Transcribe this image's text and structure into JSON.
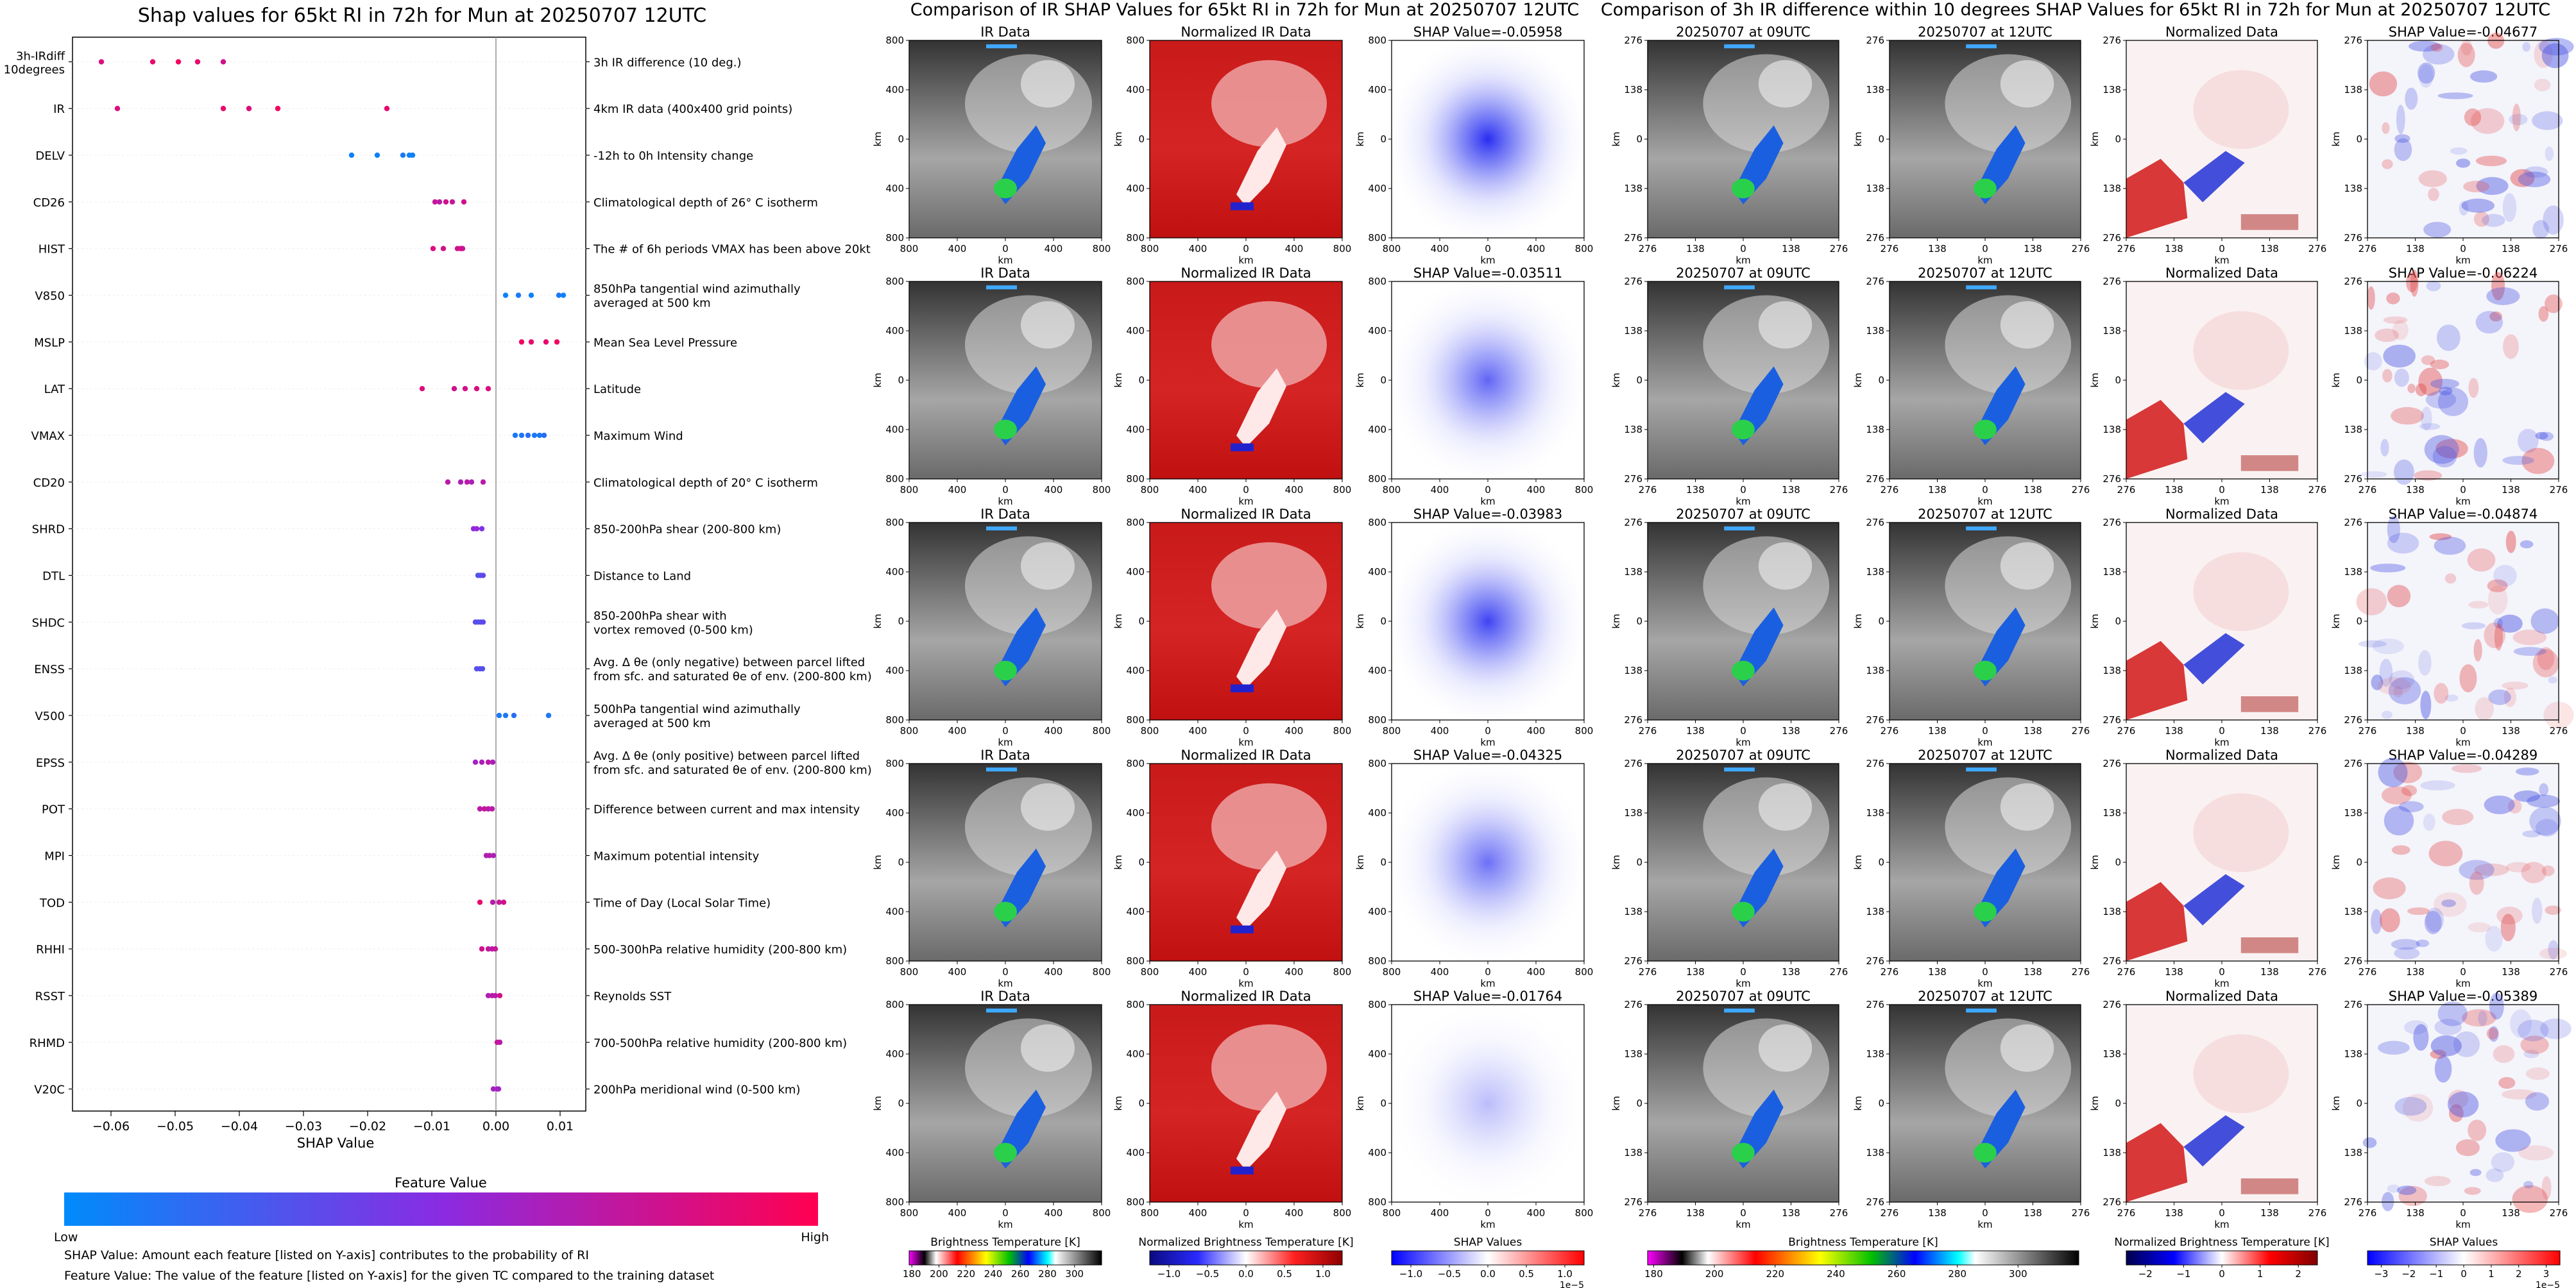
{
  "titles": {
    "shap_chart": "Shap values for 65kt RI in 72h for Mun at 20250707 12UTC",
    "ir_section": "Comparison of IR SHAP Values for 65kt RI in 72h for Mun at 20250707 12UTC",
    "diff_section": "Comparison of 3h IR difference within 10 degrees SHAP Values for 65kt RI in 72h for Mun at 20250707 12UTC"
  },
  "chart_data": {
    "type": "scatter",
    "xlabel": "SHAP Value",
    "xlim": [
      -0.066,
      0.014
    ],
    "xticks": [
      -0.06,
      -0.05,
      -0.04,
      -0.03,
      -0.02,
      -0.01,
      0.0,
      0.01
    ],
    "xtick_labels": [
      "−0.06",
      "−0.05",
      "−0.04",
      "−0.03",
      "−0.02",
      "−0.01",
      "0.00",
      "0.01"
    ],
    "colorbar": {
      "title": "Feature Value",
      "low": "Low",
      "high": "High",
      "colors": [
        "#008bfb",
        "#8a2be2",
        "#ff0051"
      ]
    },
    "features": [
      {
        "label": "3h-IRdiff\n10degrees",
        "desc": "3h IR difference (10 deg.)",
        "points": [
          [
            -0.0615,
            0.85
          ],
          [
            -0.0535,
            0.9
          ],
          [
            -0.0495,
            0.95
          ],
          [
            -0.0465,
            0.9
          ],
          [
            -0.0425,
            0.8
          ]
        ]
      },
      {
        "label": "IR",
        "desc": "4km IR data (400x400 grid points)",
        "points": [
          [
            -0.059,
            0.85
          ],
          [
            -0.0425,
            0.9
          ],
          [
            -0.0385,
            0.85
          ],
          [
            -0.034,
            0.95
          ],
          [
            -0.017,
            0.9
          ]
        ]
      },
      {
        "label": "DELV",
        "desc": "-12h to 0h Intensity change",
        "points": [
          [
            -0.0225,
            0.05
          ],
          [
            -0.0185,
            0.05
          ],
          [
            -0.0145,
            0.1
          ],
          [
            -0.013,
            0.05
          ],
          [
            -0.0135,
            0.05
          ]
        ]
      },
      {
        "label": "CD26",
        "desc": "Climatological depth of 26° C isotherm",
        "points": [
          [
            -0.0095,
            0.75
          ],
          [
            -0.0088,
            0.7
          ],
          [
            -0.0078,
            0.8
          ],
          [
            -0.0068,
            0.75
          ],
          [
            -0.005,
            0.8
          ]
        ]
      },
      {
        "label": "HIST",
        "desc": "The # of 6h periods VMAX has been above 20kt",
        "points": [
          [
            -0.0098,
            0.85
          ],
          [
            -0.0082,
            0.8
          ],
          [
            -0.006,
            0.8
          ],
          [
            -0.0052,
            0.75
          ],
          [
            -0.0055,
            0.8
          ]
        ]
      },
      {
        "label": "V850",
        "desc": "850hPa tangential wind azimuthally\naveraged at 500 km",
        "points": [
          [
            0.0015,
            0.05
          ],
          [
            0.0035,
            0.1
          ],
          [
            0.0055,
            0.05
          ],
          [
            0.0098,
            0.1
          ],
          [
            0.0105,
            0.05
          ]
        ]
      },
      {
        "label": "MSLP",
        "desc": "Mean Sea Level Pressure",
        "points": [
          [
            0.004,
            0.95
          ],
          [
            0.0055,
            0.9
          ],
          [
            0.0078,
            0.9
          ],
          [
            0.0095,
            0.95
          ]
        ]
      },
      {
        "label": "LAT",
        "desc": "Latitude",
        "points": [
          [
            -0.0115,
            0.85
          ],
          [
            -0.0065,
            0.8
          ],
          [
            -0.0048,
            0.8
          ],
          [
            -0.003,
            0.85
          ],
          [
            -0.0012,
            0.85
          ]
        ]
      },
      {
        "label": "VMAX",
        "desc": "Maximum Wind",
        "points": [
          [
            0.003,
            0.1
          ],
          [
            0.004,
            0.1
          ],
          [
            0.005,
            0.15
          ],
          [
            0.006,
            0.1
          ],
          [
            0.0068,
            0.1
          ],
          [
            0.0075,
            0.15
          ]
        ]
      },
      {
        "label": "CD20",
        "desc": "Climatological depth of 20° C isotherm",
        "points": [
          [
            -0.0075,
            0.7
          ],
          [
            -0.0055,
            0.65
          ],
          [
            -0.0045,
            0.7
          ],
          [
            -0.0038,
            0.65
          ],
          [
            -0.002,
            0.7
          ]
        ]
      },
      {
        "label": "SHRD",
        "desc": "850-200hPa shear (200-800 km)",
        "points": [
          [
            -0.0035,
            0.5
          ],
          [
            -0.003,
            0.55
          ],
          [
            -0.0022,
            0.45
          ]
        ]
      },
      {
        "label": "DTL",
        "desc": "Distance to Land",
        "points": [
          [
            -0.0028,
            0.3
          ],
          [
            -0.0024,
            0.3
          ],
          [
            -0.002,
            0.35
          ]
        ]
      },
      {
        "label": "SHDC",
        "desc": "850-200hPa shear with\nvortex removed (0-500 km)",
        "points": [
          [
            -0.0032,
            0.35
          ],
          [
            -0.0028,
            0.3
          ],
          [
            -0.0024,
            0.3
          ],
          [
            -0.002,
            0.35
          ]
        ]
      },
      {
        "label": "ENSS",
        "desc": "Avg. Δ θe (only negative) between parcel lifted\nfrom sfc. and saturated θe of env. (200-800 km)",
        "points": [
          [
            -0.003,
            0.3
          ],
          [
            -0.0025,
            0.35
          ],
          [
            -0.0021,
            0.3
          ]
        ]
      },
      {
        "label": "V500",
        "desc": "500hPa tangential wind azimuthally\naveraged at 500 km",
        "points": [
          [
            0.0005,
            0.1
          ],
          [
            0.0015,
            0.1
          ],
          [
            0.0028,
            0.15
          ],
          [
            0.0082,
            0.1
          ]
        ]
      },
      {
        "label": "EPSS",
        "desc": "Avg. Δ θe (only positive) between parcel lifted\nfrom sfc. and saturated θe of env. (200-800 km)",
        "points": [
          [
            -0.0032,
            0.6
          ],
          [
            -0.0022,
            0.65
          ],
          [
            -0.0012,
            0.7
          ],
          [
            -0.0005,
            0.65
          ]
        ]
      },
      {
        "label": "POT",
        "desc": "Difference between current and max intensity",
        "points": [
          [
            -0.0025,
            0.7
          ],
          [
            -0.0018,
            0.75
          ],
          [
            -0.0012,
            0.7
          ],
          [
            -0.0006,
            0.7
          ]
        ]
      },
      {
        "label": "MPI",
        "desc": "Maximum potential intensity",
        "points": [
          [
            -0.0015,
            0.65
          ],
          [
            -0.001,
            0.7
          ],
          [
            -0.0004,
            0.65
          ]
        ]
      },
      {
        "label": "TOD",
        "desc": "Time of Day (Local Solar Time)",
        "points": [
          [
            -0.0025,
            0.9
          ],
          [
            -0.0005,
            0.7
          ],
          [
            0.0005,
            0.75
          ],
          [
            0.0012,
            0.8
          ]
        ]
      },
      {
        "label": "RHHI",
        "desc": "500-300hPa relative humidity (200-800 km)",
        "points": [
          [
            -0.0022,
            0.8
          ],
          [
            -0.0012,
            0.75
          ],
          [
            -0.0006,
            0.7
          ],
          [
            -0.0001,
            0.75
          ]
        ]
      },
      {
        "label": "RSST",
        "desc": "Reynolds SST",
        "points": [
          [
            -0.0012,
            0.65
          ],
          [
            -0.0006,
            0.7
          ],
          [
            -0.0001,
            0.7
          ],
          [
            0.0006,
            0.8
          ]
        ]
      },
      {
        "label": "RHMD",
        "desc": "700-500hPa relative humidity (200-800 km)",
        "points": [
          [
            0.0002,
            0.75
          ],
          [
            0.0006,
            0.7
          ]
        ]
      },
      {
        "label": "V20C",
        "desc": "200hPa meridional wind (0-500 km)",
        "points": [
          [
            -0.0004,
            0.6
          ],
          [
            0.0002,
            0.65
          ],
          [
            0.0004,
            0.6
          ]
        ]
      }
    ]
  },
  "footnotes": [
    "SHAP Value: Amount each feature [listed on Y-axis] contributes to the probability of RI",
    "Feature Value: The value of the feature [listed on Y-axis] for the given TC compared to the training dataset"
  ],
  "ir_grid": {
    "col_titles": [
      "IR Data",
      "Normalized IR Data"
    ],
    "shap_titles": [
      "SHAP Value=-0.05958",
      "SHAP Value=-0.03511",
      "SHAP Value=-0.03983",
      "SHAP Value=-0.04325",
      "SHAP Value=-0.01764"
    ],
    "shap_intensity": [
      0.95,
      0.7,
      0.85,
      0.65,
      0.3
    ],
    "ytick_labels": [
      "800",
      "400",
      "0",
      "400",
      "800"
    ],
    "xtick_labels": [
      "800",
      "400",
      "0",
      "400",
      "800"
    ],
    "axis_label": "km"
  },
  "diff_grid": {
    "col_titles": [
      "20250707 at 09UTC",
      "20250707 at 12UTC",
      "Normalized Data"
    ],
    "shap_titles": [
      "SHAP Value=-0.04677",
      "SHAP Value=-0.06224",
      "SHAP Value=-0.04874",
      "SHAP Value=-0.04289",
      "SHAP Value=-0.05389"
    ],
    "ytick_labels": [
      "276",
      "138",
      "0",
      "138",
      "276"
    ],
    "xtick_labels": [
      "276",
      "138",
      "0",
      "138",
      "276"
    ],
    "axis_label": "km"
  },
  "colorbars": [
    {
      "label": "Brightness Temperature [K]",
      "ticks": [
        "180",
        "200",
        "220",
        "240",
        "260",
        "280",
        "300"
      ],
      "kind": "ir"
    },
    {
      "label": "Normalized Brightness Temperature [K]",
      "ticks": [
        "−1.0",
        "−0.5",
        "0.0",
        "0.5",
        "1.0"
      ],
      "kind": "norm"
    },
    {
      "label": "SHAP Values",
      "ticks": [
        "−1.0",
        "−0.5",
        "0.0",
        "0.5",
        "1.0"
      ],
      "kind": "bwr",
      "offset": "1e−5"
    },
    {
      "label": "Brightness Temperature [K]",
      "ticks": [
        "180",
        "200",
        "220",
        "240",
        "260",
        "280",
        "300"
      ],
      "kind": "ir"
    },
    {
      "label": "Normalized Brightness Temperature [K]",
      "ticks": [
        "−2",
        "−1",
        "0",
        "1",
        "2"
      ],
      "kind": "seismic"
    },
    {
      "label": "SHAP Values",
      "ticks": [
        "−3",
        "−2",
        "−1",
        "0",
        "1",
        "2",
        "3"
      ],
      "kind": "bwr",
      "offset": "1e−5"
    }
  ]
}
